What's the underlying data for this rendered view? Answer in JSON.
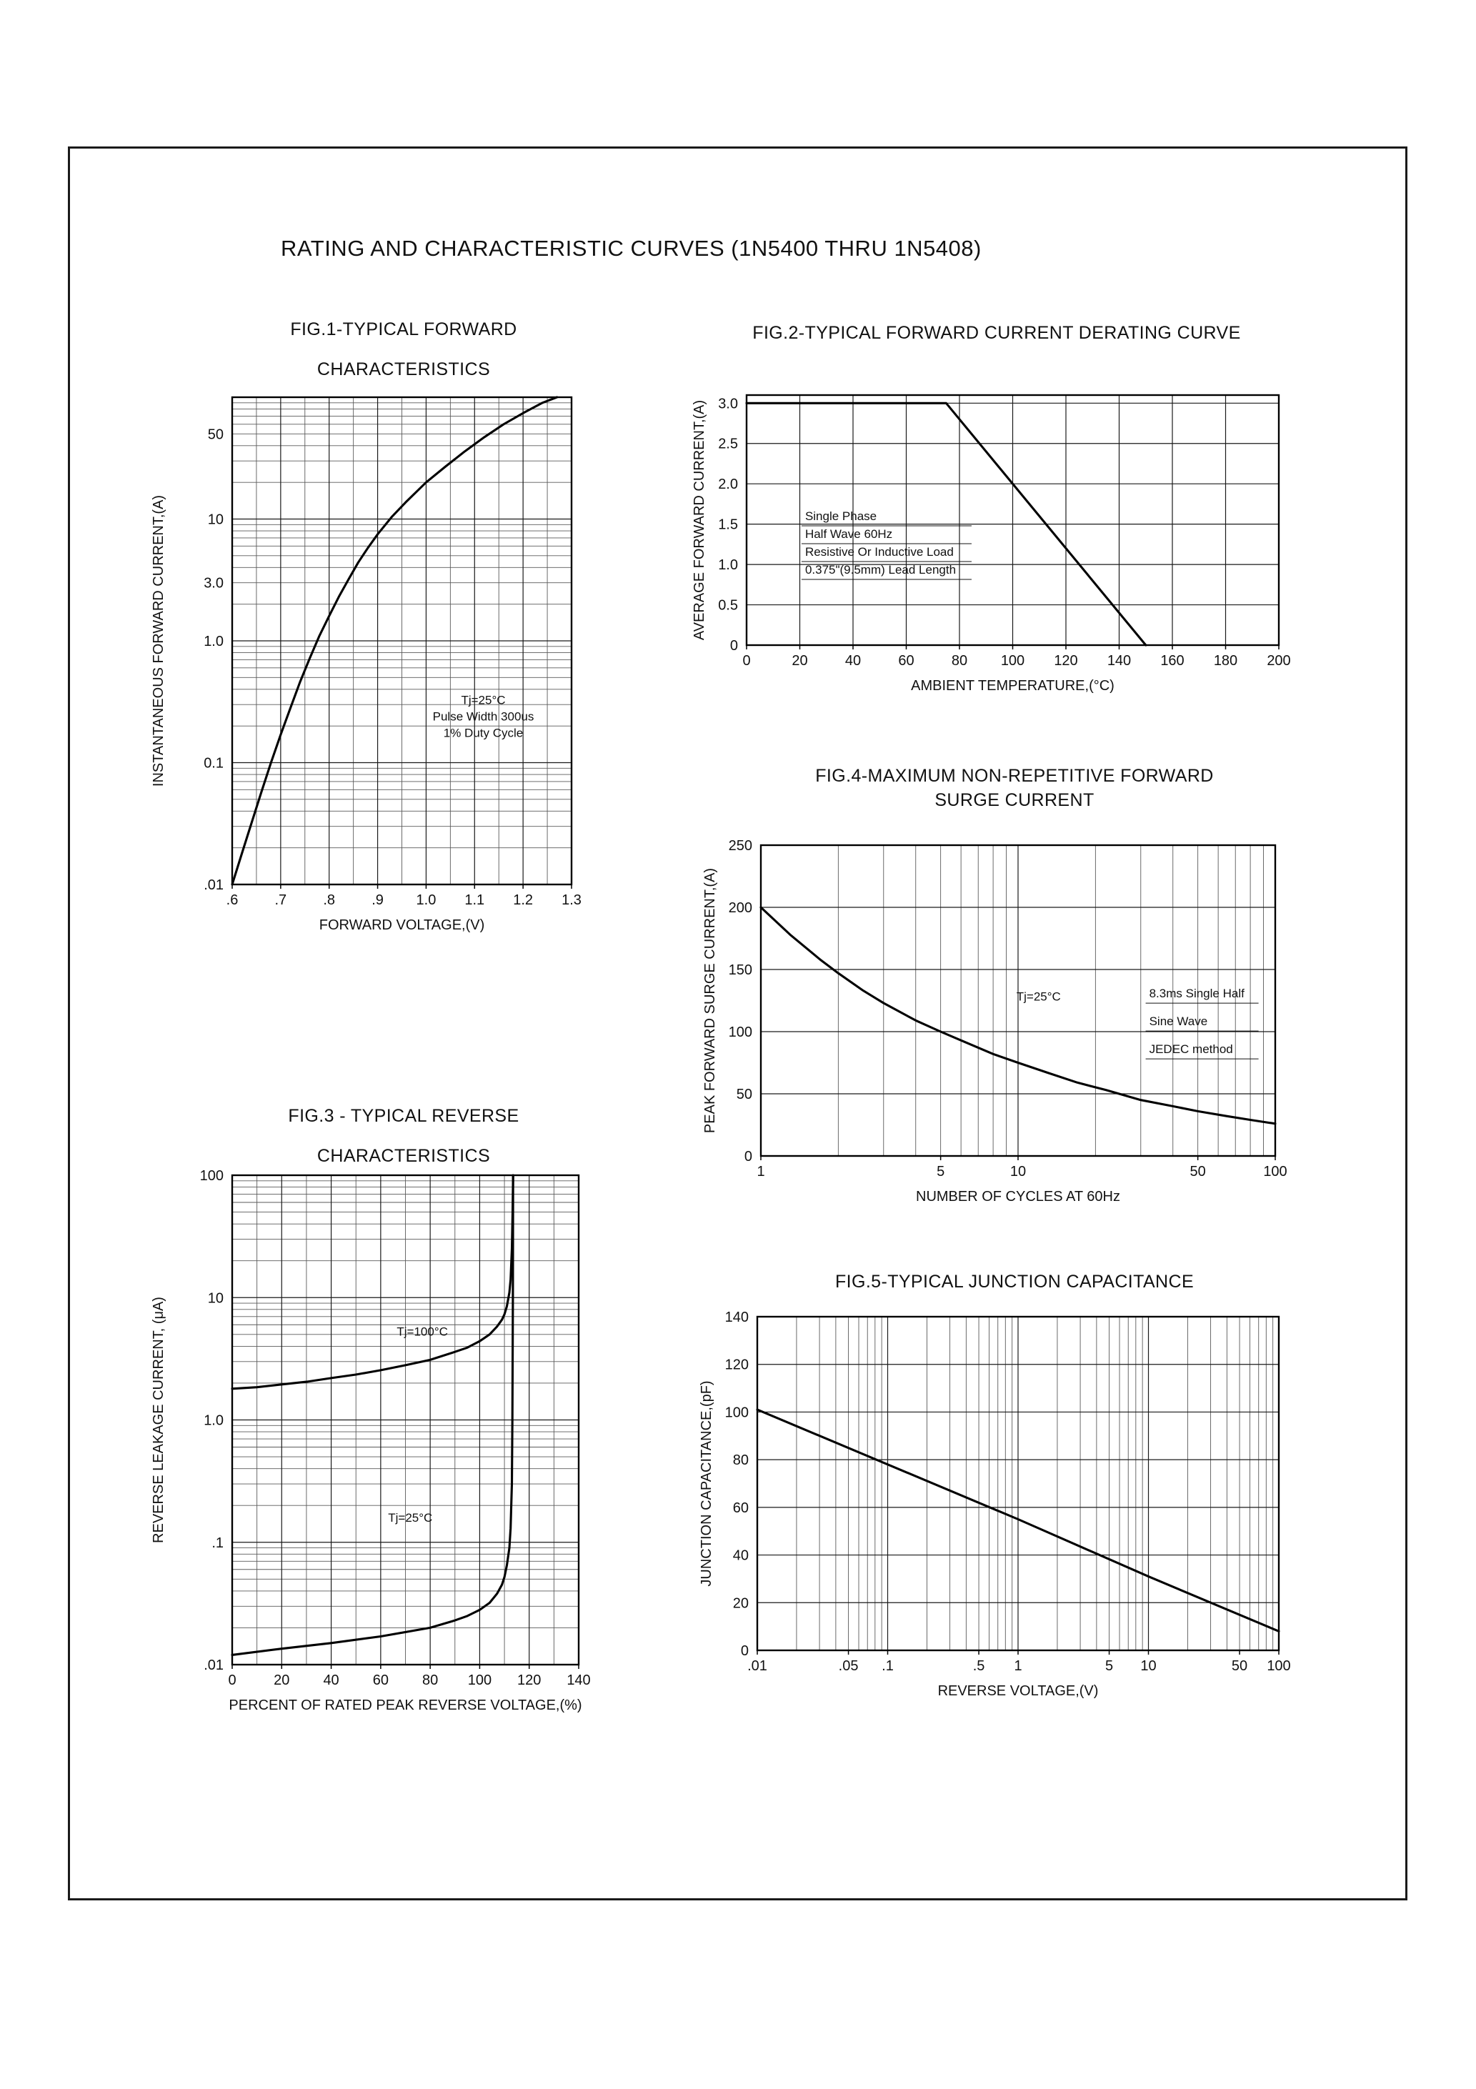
{
  "page": {
    "title": "RATING AND CHARACTERISTIC CURVES (1N5400 THRU 1N5408)"
  },
  "chart_data": [
    {
      "id": "fig1",
      "type": "line",
      "title": "FIG.1-TYPICAL FORWARD",
      "subtitle": "CHARACTERISTICS",
      "xlabel": "FORWARD VOLTAGE,(V)",
      "ylabel": "INSTANTANEOUS FORWARD CURRENT,(A)",
      "x": {
        "scale": "linear",
        "min": 0.6,
        "max": 1.3,
        "minor_step": 0.05,
        "ticks": [
          [
            0.6,
            ".6"
          ],
          [
            0.7,
            ".7"
          ],
          [
            0.8,
            ".8"
          ],
          [
            0.9,
            ".9"
          ],
          [
            1.0,
            "1.0"
          ],
          [
            1.1,
            "1.1"
          ],
          [
            1.2,
            "1.2"
          ],
          [
            1.3,
            "1.3"
          ]
        ]
      },
      "y": {
        "scale": "log",
        "min": 0.01,
        "max": 100,
        "ticks": [
          [
            50,
            "50"
          ],
          [
            10,
            "10"
          ],
          [
            3,
            "3.0"
          ],
          [
            1,
            "1.0"
          ],
          [
            0.1,
            "0.1"
          ],
          [
            0.01,
            ".01"
          ]
        ]
      },
      "series": [
        {
          "name": "forward current Tj=25°C",
          "points": [
            [
              0.6,
              0.01
            ],
            [
              0.62,
              0.018
            ],
            [
              0.64,
              0.032
            ],
            [
              0.66,
              0.057
            ],
            [
              0.68,
              0.1
            ],
            [
              0.7,
              0.17
            ],
            [
              0.72,
              0.28
            ],
            [
              0.74,
              0.46
            ],
            [
              0.76,
              0.72
            ],
            [
              0.78,
              1.1
            ],
            [
              0.8,
              1.6
            ],
            [
              0.82,
              2.3
            ],
            [
              0.84,
              3.2
            ],
            [
              0.86,
              4.4
            ],
            [
              0.88,
              5.8
            ],
            [
              0.9,
              7.5
            ],
            [
              0.93,
              10.5
            ],
            [
              0.96,
              14
            ],
            [
              1.0,
              20
            ],
            [
              1.04,
              27
            ],
            [
              1.08,
              36
            ],
            [
              1.12,
              47
            ],
            [
              1.16,
              60
            ],
            [
              1.2,
              74
            ],
            [
              1.24,
              90
            ],
            [
              1.27,
              100
            ]
          ]
        }
      ],
      "annotations": [
        {
          "px": 0.74,
          "py": 0.63,
          "anchor": "middle",
          "line_h": 23,
          "lines": [
            "Tj=25°C",
            "Pulse Width 300us",
            "1% Duty Cycle"
          ]
        }
      ]
    },
    {
      "id": "fig2",
      "type": "line",
      "title": "FIG.2-TYPICAL FORWARD CURRENT DERATING CURVE",
      "xlabel": "AMBIENT TEMPERATURE,(°C)",
      "ylabel": "AVERAGE FORWARD CURRENT,(A)",
      "x": {
        "scale": "linear",
        "min": 0,
        "max": 200,
        "ticks": [
          [
            0,
            "0"
          ],
          [
            20,
            "20"
          ],
          [
            40,
            "40"
          ],
          [
            60,
            "60"
          ],
          [
            80,
            "80"
          ],
          [
            100,
            "100"
          ],
          [
            120,
            "120"
          ],
          [
            140,
            "140"
          ],
          [
            160,
            "160"
          ],
          [
            180,
            "180"
          ],
          [
            200,
            "200"
          ]
        ]
      },
      "y": {
        "scale": "linear",
        "min": 0,
        "max": 3.1,
        "ticks": [
          [
            3.0,
            "3.0"
          ],
          [
            2.5,
            "2.5"
          ],
          [
            2.0,
            "2.0"
          ],
          [
            1.5,
            "1.5"
          ],
          [
            1.0,
            "1.0"
          ],
          [
            0.5,
            "0.5"
          ],
          [
            0,
            "0"
          ]
        ]
      },
      "series": [
        {
          "name": "derating curve",
          "points": [
            [
              0,
              3.0
            ],
            [
              75,
              3.0
            ],
            [
              150,
              0
            ]
          ]
        }
      ],
      "annotations": [
        {
          "px": 0.11,
          "py": 0.5,
          "anchor": "start",
          "line_h": 25,
          "ul_w": 238,
          "lines": [
            "Single Phase",
            "Half Wave 60Hz",
            "Resistive Or Inductive Load",
            "0.375\"(9.5mm) Lead Length"
          ]
        }
      ]
    },
    {
      "id": "fig3",
      "type": "line",
      "title": "FIG.3 - TYPICAL REVERSE",
      "subtitle": "CHARACTERISTICS",
      "xlabel": "PERCENT OF RATED PEAK REVERSE VOLTAGE,(%)",
      "ylabel": "REVERSE LEAKAGE CURRENT, (μA)",
      "x": {
        "scale": "linear",
        "min": 0,
        "max": 140,
        "minor_step": 10,
        "ticks": [
          [
            0,
            "0"
          ],
          [
            20,
            "20"
          ],
          [
            40,
            "40"
          ],
          [
            60,
            "60"
          ],
          [
            80,
            "80"
          ],
          [
            100,
            "100"
          ],
          [
            120,
            "120"
          ],
          [
            140,
            "140"
          ]
        ]
      },
      "y": {
        "scale": "log",
        "min": 0.01,
        "max": 100,
        "ticks": [
          [
            100,
            "100"
          ],
          [
            10,
            "10"
          ],
          [
            1,
            "1.0"
          ],
          [
            0.1,
            ".1"
          ],
          [
            0.01,
            ".01"
          ]
        ]
      },
      "series": [
        {
          "name": "Tj=100°C",
          "points": [
            [
              0,
              1.8
            ],
            [
              10,
              1.85
            ],
            [
              20,
              1.95
            ],
            [
              30,
              2.05
            ],
            [
              40,
              2.2
            ],
            [
              50,
              2.35
            ],
            [
              60,
              2.55
            ],
            [
              70,
              2.8
            ],
            [
              80,
              3.1
            ],
            [
              90,
              3.6
            ],
            [
              95,
              3.9
            ],
            [
              100,
              4.4
            ],
            [
              104,
              5.0
            ],
            [
              107,
              5.8
            ],
            [
              109,
              6.6
            ],
            [
              110,
              7.3
            ],
            [
              111,
              8.5
            ],
            [
              112,
              11
            ],
            [
              112.5,
              14
            ],
            [
              113,
              25
            ],
            [
              113.3,
              50
            ],
            [
              113.5,
              100
            ]
          ]
        },
        {
          "name": "Tj=25°C",
          "points": [
            [
              0,
              0.012
            ],
            [
              20,
              0.0135
            ],
            [
              40,
              0.015
            ],
            [
              60,
              0.017
            ],
            [
              80,
              0.02
            ],
            [
              90,
              0.023
            ],
            [
              95,
              0.025
            ],
            [
              100,
              0.028
            ],
            [
              104,
              0.032
            ],
            [
              107,
              0.038
            ],
            [
              109,
              0.045
            ],
            [
              110,
              0.052
            ],
            [
              111,
              0.065
            ],
            [
              112,
              0.09
            ],
            [
              112.5,
              0.13
            ],
            [
              113,
              0.3
            ],
            [
              113.2,
              1.0
            ],
            [
              113.4,
              10
            ],
            [
              113.5,
              100
            ]
          ]
        }
      ],
      "annotations": [
        {
          "px": 0.475,
          "py": 0.328,
          "anchor": "start",
          "line_h": 23,
          "lines": [
            "Tj=100°C"
          ]
        },
        {
          "px": 0.45,
          "py": 0.708,
          "anchor": "start",
          "line_h": 23,
          "lines": [
            "Tj=25°C"
          ]
        }
      ]
    },
    {
      "id": "fig4",
      "type": "line",
      "title": "FIG.4-MAXIMUM NON-REPETITIVE FORWARD",
      "subtitle": "SURGE CURRENT",
      "xlabel": "NUMBER OF CYCLES AT 60Hz",
      "ylabel": "PEAK FORWARD SURGE CURRENT,(A)",
      "x": {
        "scale": "log",
        "min": 1,
        "max": 100,
        "ticks": [
          [
            1,
            "1"
          ],
          [
            5,
            "5"
          ],
          [
            10,
            "10"
          ],
          [
            50,
            "50"
          ],
          [
            100,
            "100"
          ]
        ]
      },
      "y": {
        "scale": "linear",
        "min": 0,
        "max": 250,
        "ticks": [
          [
            250,
            "250"
          ],
          [
            200,
            "200"
          ],
          [
            150,
            "150"
          ],
          [
            100,
            "100"
          ],
          [
            50,
            "50"
          ],
          [
            0,
            "0"
          ]
        ]
      },
      "series": [
        {
          "name": "surge current",
          "points": [
            [
              1,
              200
            ],
            [
              1.3,
              178
            ],
            [
              1.7,
              158
            ],
            [
              2,
              147
            ],
            [
              2.5,
              133
            ],
            [
              3,
              123
            ],
            [
              4,
              109
            ],
            [
              5,
              100
            ],
            [
              6,
              93
            ],
            [
              8,
              82
            ],
            [
              10,
              75
            ],
            [
              13,
              67
            ],
            [
              17,
              59
            ],
            [
              22,
              53
            ],
            [
              30,
              45
            ],
            [
              40,
              40
            ],
            [
              50,
              36
            ],
            [
              65,
              32
            ],
            [
              80,
              29
            ],
            [
              100,
              26
            ]
          ]
        }
      ],
      "annotations": [
        {
          "px": 0.54,
          "py": 0.5,
          "anchor": "middle",
          "line_h": 23,
          "lines": [
            "Tj=25°C"
          ]
        },
        {
          "px": 0.755,
          "py": 0.49,
          "anchor": "start",
          "line_h": 39,
          "ul_w": 158,
          "lines": [
            "8.3ms Single Half",
            "Sine Wave",
            "JEDEC method"
          ]
        }
      ]
    },
    {
      "id": "fig5",
      "type": "line",
      "title": "FIG.5-TYPICAL JUNCTION CAPACITANCE",
      "xlabel": "REVERSE VOLTAGE,(V)",
      "ylabel": "JUNCTION CAPACITANCE,(pF)",
      "x": {
        "scale": "log",
        "min": 0.01,
        "max": 100,
        "ticks": [
          [
            0.01,
            ".01"
          ],
          [
            0.05,
            ".05"
          ],
          [
            0.1,
            ".1"
          ],
          [
            0.5,
            ".5"
          ],
          [
            1,
            "1"
          ],
          [
            5,
            "5"
          ],
          [
            10,
            "10"
          ],
          [
            50,
            "50"
          ],
          [
            100,
            "100"
          ]
        ]
      },
      "y": {
        "scale": "linear",
        "min": 0,
        "max": 140,
        "ticks": [
          [
            140,
            "140"
          ],
          [
            120,
            "120"
          ],
          [
            100,
            "100"
          ],
          [
            80,
            "80"
          ],
          [
            60,
            "60"
          ],
          [
            40,
            "40"
          ],
          [
            20,
            "20"
          ],
          [
            0,
            "0"
          ]
        ]
      },
      "series": [
        {
          "name": "junction capacitance",
          "points": [
            [
              0.01,
              101
            ],
            [
              0.1,
              78
            ],
            [
              1,
              55
            ],
            [
              10,
              31
            ],
            [
              100,
              8
            ]
          ]
        }
      ]
    }
  ]
}
